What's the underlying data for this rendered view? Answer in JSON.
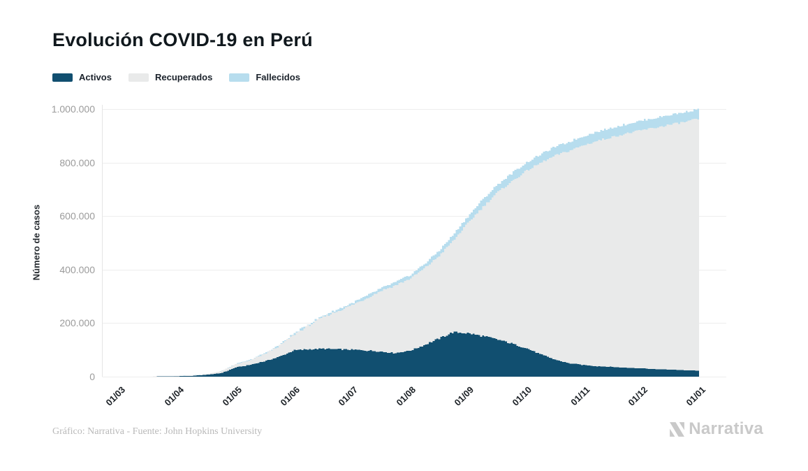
{
  "header": {
    "title": "Evolución COVID-19 en Perú"
  },
  "legend": {
    "items": [
      {
        "label": "Activos",
        "color": "#114f70"
      },
      {
        "label": "Recuperados",
        "color": "#e9eaea"
      },
      {
        "label": "Fallecidos",
        "color": "#b7ddee"
      }
    ]
  },
  "footer": {
    "credit": "Gráfico: Narrativa - Fuente: John Hopkins University",
    "brand": "Narrativa"
  },
  "colors": {
    "activos": "#114f70",
    "recuperados": "#e9eaea",
    "fallecidos": "#b7ddee",
    "gridline": "#ededed",
    "axis_line": "#e5e5e5",
    "y_tick_text": "#9b9b9b",
    "x_tick_text": "#1c2126"
  },
  "chart_data": {
    "type": "area",
    "stacked": true,
    "title": "Evolución COVID-19 en Perú",
    "ylabel": "Número de casos",
    "xlabel": "",
    "ylim": [
      0,
      1000000
    ],
    "grid": "horizontal",
    "legend_position": "top-left",
    "x_unit": "months after 01/03 (dd/mm)",
    "x_tick_labels": [
      "01/03",
      "01/04",
      "01/05",
      "01/06",
      "01/07",
      "01/08",
      "01/09",
      "01/10",
      "01/11",
      "01/12",
      "01/01"
    ],
    "x_tick_positions": [
      0,
      1,
      2,
      3,
      4,
      5,
      6,
      7,
      8,
      9,
      10
    ],
    "y_ticks": [
      {
        "v": 0,
        "label": "0"
      },
      {
        "v": 200000,
        "label": "200.000"
      },
      {
        "v": 400000,
        "label": "400.000"
      },
      {
        "v": 600000,
        "label": "600.000"
      },
      {
        "v": 800000,
        "label": "800.000"
      },
      {
        "v": 1000000,
        "label": "1.000.000"
      }
    ],
    "x": [
      0,
      0.25,
      0.5,
      0.75,
      1,
      1.25,
      1.5,
      1.75,
      2,
      2.25,
      2.5,
      2.75,
      3,
      3.25,
      3.5,
      3.75,
      4,
      4.25,
      4.5,
      4.75,
      5,
      5.25,
      5.5,
      5.75,
      6,
      6.25,
      6.5,
      6.75,
      7,
      7.25,
      7.5,
      7.75,
      8,
      8.25,
      8.5,
      8.75,
      9,
      9.25,
      9.5,
      9.75,
      10
    ],
    "series": [
      {
        "name": "Activos",
        "color": "#114f70",
        "values": [
          0,
          100,
          400,
          900,
          1700,
          3200,
          7000,
          13000,
          34000,
          44000,
          58000,
          74000,
          98000,
          102000,
          104000,
          102000,
          101000,
          98000,
          94000,
          88000,
          97000,
          118000,
          142000,
          166000,
          162000,
          152000,
          140000,
          124000,
          107000,
          84000,
          64000,
          50000,
          43000,
          39000,
          36000,
          33000,
          31000,
          28000,
          26000,
          24000,
          22000
        ]
      },
      {
        "name": "Recuperados",
        "color": "#e9eaea",
        "values": [
          0,
          0,
          50,
          250,
          500,
          1200,
          3000,
          7000,
          12000,
          17000,
          27000,
          41000,
          58000,
          88000,
          118000,
          142000,
          166000,
          194000,
          226000,
          253000,
          268000,
          286000,
          308000,
          342000,
          411000,
          480000,
          546000,
          604000,
          660000,
          714000,
          761000,
          794000,
          822000,
          843000,
          860000,
          876000,
          890000,
          903000,
          916000,
          928000,
          942000
        ]
      },
      {
        "name": "Fallecidos",
        "color": "#b7ddee",
        "values": [
          0,
          0,
          10,
          30,
          70,
          180,
          350,
          700,
          1400,
          1900,
          2500,
          3300,
          4200,
          5000,
          5800,
          6600,
          7500,
          8600,
          9700,
          11500,
          13500,
          16500,
          19500,
          22500,
          25500,
          27500,
          29000,
          30200,
          31000,
          32000,
          33000,
          33600,
          34200,
          34700,
          35100,
          35500,
          35900,
          36300,
          36700,
          37100,
          37500
        ]
      }
    ]
  }
}
